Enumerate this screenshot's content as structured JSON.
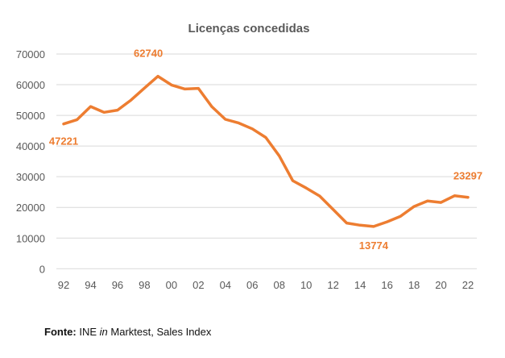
{
  "chart_data": {
    "type": "line",
    "title": "Licenças concedidas",
    "xlabel": "",
    "ylabel": "",
    "x": [
      "92",
      "93",
      "94",
      "95",
      "96",
      "97",
      "98",
      "99",
      "00",
      "01",
      "02",
      "03",
      "04",
      "05",
      "06",
      "07",
      "08",
      "09",
      "10",
      "11",
      "12",
      "13",
      "14",
      "15",
      "16",
      "17",
      "18",
      "19",
      "20",
      "21",
      "22"
    ],
    "x_tick_labels": [
      "92",
      "94",
      "96",
      "98",
      "00",
      "02",
      "04",
      "06",
      "08",
      "10",
      "12",
      "14",
      "16",
      "18",
      "20",
      "22"
    ],
    "y_tick_labels": [
      "0",
      "10000",
      "20000",
      "30000",
      "40000",
      "50000",
      "60000",
      "70000"
    ],
    "ylim": [
      0,
      70000
    ],
    "grid": true,
    "legend": "none",
    "series": [
      {
        "color": "#ED7D31",
        "values": [
          47221,
          48600,
          52900,
          51000,
          51700,
          55000,
          58900,
          62740,
          59900,
          58600,
          58800,
          52800,
          48700,
          47500,
          45600,
          42800,
          36800,
          28700,
          26300,
          23700,
          19300,
          14900,
          14200,
          13774,
          15300,
          17100,
          20300,
          22100,
          21600,
          23800,
          23297
        ]
      }
    ],
    "data_labels": [
      {
        "x": "92",
        "text": "47221"
      },
      {
        "x": "99",
        "text": "62740"
      },
      {
        "x": "15",
        "text": "13774"
      },
      {
        "x": "22",
        "text": "23297"
      }
    ]
  },
  "footnote": {
    "label": "Fonte:",
    "source": "INE",
    "in": "in",
    "rest": "Marktest, Sales Index"
  }
}
